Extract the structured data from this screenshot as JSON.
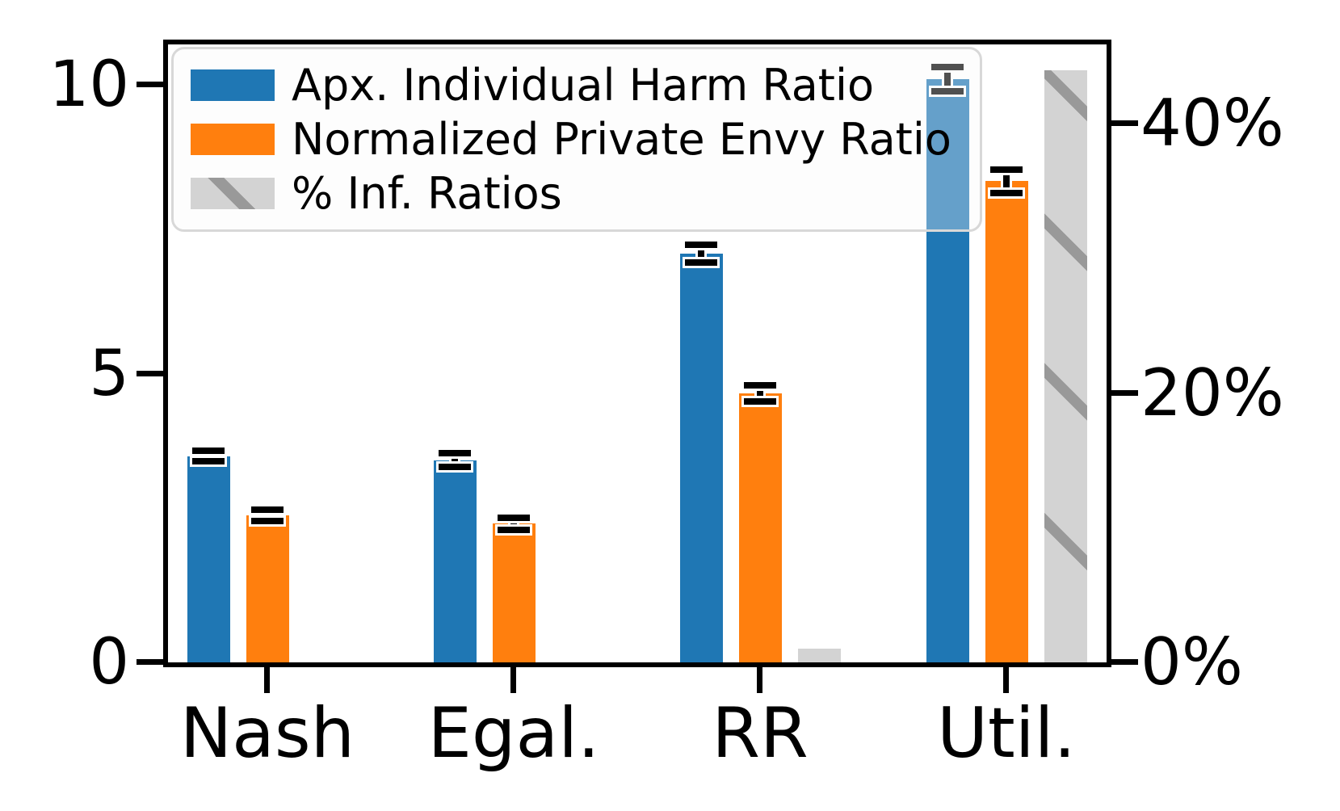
{
  "chart_data": {
    "type": "bar",
    "title": "",
    "categories": [
      "Nash",
      "Egal.",
      "RR",
      "Util."
    ],
    "series": [
      {
        "key": "harm",
        "name": "Apx. Individual Harm Ratio",
        "axis": "left",
        "color": "#1f77b4",
        "values": [
          3.57,
          3.5,
          7.08,
          10.1
        ],
        "errors": [
          0.09,
          0.12,
          0.15,
          0.21
        ]
      },
      {
        "key": "envy",
        "name": "Normalized Private Envy Ratio",
        "axis": "left",
        "color": "#ff7f0e",
        "values": [
          2.55,
          2.4,
          4.66,
          8.33
        ],
        "errors": [
          0.1,
          0.11,
          0.14,
          0.2
        ]
      },
      {
        "key": "inf",
        "name": "% Inf. Ratios",
        "axis": "right",
        "color": "#d3d3d3",
        "hatch": "/",
        "hatch_color": "#999999",
        "values": [
          0,
          0,
          1.0,
          44.0
        ],
        "errors": [
          0,
          0,
          0,
          0
        ]
      }
    ],
    "left_axis": {
      "ticks": [
        {
          "value": 0,
          "label": "0"
        },
        {
          "value": 5,
          "label": "5"
        },
        {
          "value": 10,
          "label": "10"
        }
      ],
      "range": [
        0,
        10.7
      ]
    },
    "right_axis": {
      "ticks": [
        {
          "value": 0,
          "label": "0%"
        },
        {
          "value": 20,
          "label": "20%"
        },
        {
          "value": 40,
          "label": "40%"
        }
      ],
      "range": [
        0,
        45.9
      ],
      "unit": "%"
    },
    "legend": {
      "position": "upper-left",
      "entries": [
        "Apx. Individual Harm Ratio",
        "Normalized Private Envy Ratio",
        "% Inf. Ratios"
      ]
    },
    "error_bar_color": "#000000",
    "grid": false
  }
}
